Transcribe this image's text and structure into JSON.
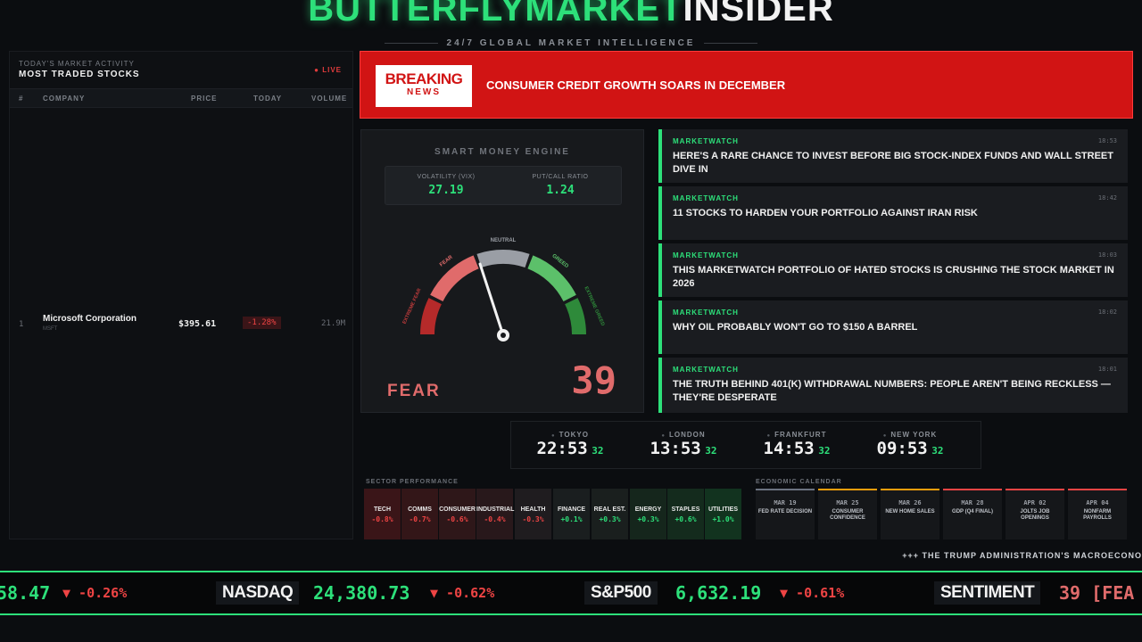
{
  "brand": {
    "part1": "BUTTERFLYMARKET",
    "part2": "INSIDER",
    "tagline": "24/7 GLOBAL MARKET INTELLIGENCE"
  },
  "colors": {
    "accent": "#2de07a",
    "down": "#ef4444",
    "breaking": "#d11414"
  },
  "stocks_panel": {
    "subtitle": "TODAY'S MARKET ACTIVITY",
    "title": "MOST TRADED STOCKS",
    "live": "● LIVE",
    "columns": [
      "#",
      "COMPANY",
      "PRICE",
      "TODAY",
      "VOLUME"
    ],
    "rows": [
      {
        "rank": "1",
        "company": "Microsoft Corporation",
        "ticker": "MSFT",
        "price": "$395.61",
        "today": "-1.28%",
        "volume": "21.9M"
      }
    ]
  },
  "breaking": {
    "logo_top": "BREAKING",
    "logo_bottom": "NEWS",
    "headline": "CONSUMER CREDIT GROWTH SOARS IN DECEMBER"
  },
  "smart_money": {
    "title": "SMART MONEY ENGINE",
    "vix_label": "VOLATILITY (VIX)",
    "vix_value": "27.19",
    "pcr_label": "PUT/CALL RATIO",
    "pcr_value": "1.24",
    "zones": {
      "extreme_fear": "EXTREME FEAR",
      "fear": "FEAR",
      "neutral": "NEUTRAL",
      "greed": "GREED",
      "extreme_greed": "EXTREME GREED"
    },
    "sentiment_label": "FEAR",
    "sentiment_value": "39",
    "gauge_value": 39
  },
  "news": [
    {
      "source": "MARKETWATCH",
      "time": "18:53",
      "headline": "HERE'S A RARE CHANCE TO INVEST BEFORE BIG STOCK-INDEX FUNDS AND WALL STREET DIVE IN"
    },
    {
      "source": "MARKETWATCH",
      "time": "18:42",
      "headline": "11 STOCKS TO HARDEN YOUR PORTFOLIO AGAINST IRAN RISK"
    },
    {
      "source": "MARKETWATCH",
      "time": "18:03",
      "headline": "THIS MARKETWATCH PORTFOLIO OF HATED STOCKS IS CRUSHING THE STOCK MARKET IN 2026"
    },
    {
      "source": "MARKETWATCH",
      "time": "18:02",
      "headline": "WHY OIL PROBABLY WON'T GO TO $150 A BARREL"
    },
    {
      "source": "MARKETWATCH",
      "time": "18:01",
      "headline": "THE TRUTH BEHIND 401(K) WITHDRAWAL NUMBERS: PEOPLE AREN'T BEING RECKLESS — THEY'RE DESPERATE"
    }
  ],
  "clocks": [
    {
      "city": "TOKYO",
      "time": "22:53",
      "sec": "32"
    },
    {
      "city": "LONDON",
      "time": "13:53",
      "sec": "32"
    },
    {
      "city": "FRANKFURT",
      "time": "14:53",
      "sec": "32"
    },
    {
      "city": "NEW YORK",
      "time": "09:53",
      "sec": "32"
    }
  ],
  "sectors_title": "SECTOR PERFORMANCE",
  "sectors": [
    {
      "name": "TECH",
      "value": "-0.8%",
      "dir": "down"
    },
    {
      "name": "COMMS",
      "value": "-0.7%",
      "dir": "down"
    },
    {
      "name": "CONSUMER",
      "value": "-0.6%",
      "dir": "down"
    },
    {
      "name": "INDUSTRIAL",
      "value": "-0.4%",
      "dir": "down"
    },
    {
      "name": "HEALTH",
      "value": "-0.3%",
      "dir": "down"
    },
    {
      "name": "FINANCE",
      "value": "+0.1%",
      "dir": "up"
    },
    {
      "name": "REAL EST.",
      "value": "+0.3%",
      "dir": "up"
    },
    {
      "name": "ENERGY",
      "value": "+0.3%",
      "dir": "up"
    },
    {
      "name": "STAPLES",
      "value": "+0.6%",
      "dir": "up"
    },
    {
      "name": "UTILITIES",
      "value": "+1.0%",
      "dir": "up"
    }
  ],
  "calendar_title": "ECONOMIC CALENDAR",
  "calendar": [
    {
      "date": "MAR 19",
      "event": "FED RATE DECISION",
      "color": "#6b7280"
    },
    {
      "date": "MAR 25",
      "event": "CONSUMER CONFIDENCE",
      "color": "#f59e0b"
    },
    {
      "date": "MAR 26",
      "event": "NEW HOME SALES",
      "color": "#f59e0b"
    },
    {
      "date": "MAR 28",
      "event": "GDP (Q4 FINAL)",
      "color": "#ef4444"
    },
    {
      "date": "APR 02",
      "event": "JOLTS JOB OPENINGS",
      "color": "#ef4444"
    },
    {
      "date": "APR 04",
      "event": "NONFARM PAYROLLS",
      "color": "#ef4444"
    }
  ],
  "marquee": "+++ THE TRUMP ADMINISTRATION'S MACROECONO",
  "ticker": {
    "first_value": "58.47",
    "first_change": "▼ -0.26%",
    "nasdaq_name": "NASDAQ",
    "nasdaq_value": "24,380.73",
    "nasdaq_change": "▼ -0.62%",
    "sp_name": "S&P500",
    "sp_value": "6,632.19",
    "sp_change": "▼ -0.61%",
    "sent_name": "SENTIMENT",
    "sent_value": "39 [FEA"
  }
}
